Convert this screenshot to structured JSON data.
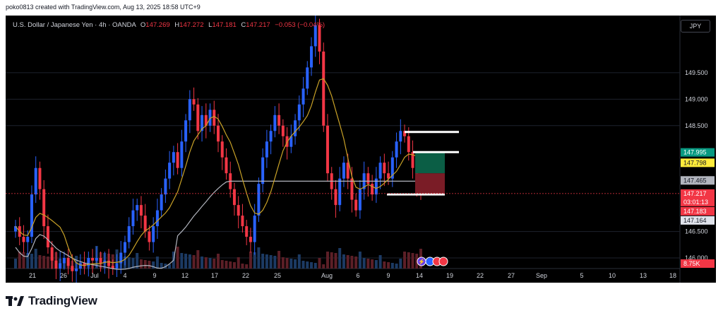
{
  "caption": "poko0813 created with TradingView.com, Aug 13, 2025 18:58 UTC+9",
  "symbol": {
    "title": "U.S. Dollar / Japanese Yen · 4h · OANDA",
    "o_label": "O",
    "o_value": "147.269",
    "h_label": "H",
    "h_value": "147.272",
    "l_label": "L",
    "l_value": "147.181",
    "c_label": "C",
    "c_value": "147.217",
    "change": "−0.053 (−0.04%)"
  },
  "currency_button": "JPY",
  "brand": "TradingView",
  "colors": {
    "up": "#2962ff",
    "down": "#f23645",
    "ma_fast": "#c9a227",
    "ma_slow": "#b2b5be",
    "profit": "#0b5e45",
    "loss": "#7a1c26"
  },
  "chart_data": {
    "type": "candlestick",
    "title": "U.S. Dollar / Japanese Yen · 4h · OANDA",
    "y_axis_ticks": [
      "149.500",
      "149.000",
      "148.500",
      "146.500",
      "146.000"
    ],
    "ylim": [
      145.8,
      150.5
    ],
    "x_axis_ticks": [
      "21",
      "26",
      "Jul",
      "4",
      "9",
      "12",
      "17",
      "22",
      "25",
      "Aug",
      "6",
      "9",
      "14",
      "19",
      "22",
      "27",
      "Sep",
      "5",
      "10",
      "13",
      "18"
    ],
    "price_labels": [
      {
        "text": "147.995",
        "value": 147.995,
        "bg": "#089981",
        "fg": "#ffffff"
      },
      {
        "text": "147.798",
        "value": 147.798,
        "bg": "#ffeb3b",
        "fg": "#131722"
      },
      {
        "text": "147.465",
        "value": 147.465,
        "bg": "#b2b5be",
        "fg": "#131722"
      },
      {
        "text": "147.217",
        "value": 147.217,
        "bg": "#f23645",
        "fg": "#ffffff",
        "sub": "03:01:13"
      },
      {
        "text": "147.183",
        "value": 147.183,
        "bg": "#f23645",
        "fg": "#ffffff"
      },
      {
        "text": "147.164",
        "value": 147.164,
        "bg": "#e0e3eb",
        "fg": "#131722"
      }
    ],
    "volume_label": "8.75K",
    "levels": [
      {
        "y": 148.38,
        "x_from": "Aug 12",
        "x_to": "Aug 16"
      },
      {
        "y": 148.0,
        "x_from": "Aug 13",
        "x_to": "Aug 16"
      },
      {
        "y": 147.2,
        "x_from": "Aug 10",
        "x_to": "Aug 15"
      }
    ],
    "position": {
      "entry": 147.6,
      "target": 147.995,
      "stop": 147.2
    },
    "candles_close": [
      146.6,
      146.4,
      146.3,
      146.4,
      147.2,
      147.7,
      147.3,
      146.6,
      146.2,
      145.95,
      145.8,
      145.9,
      146.0,
      145.85,
      145.75,
      145.8,
      145.9,
      145.85,
      146.0,
      145.95,
      146.0,
      145.9,
      145.95,
      145.85,
      145.8,
      145.9,
      146.1,
      146.3,
      146.6,
      146.9,
      147.0,
      146.8,
      146.5,
      146.3,
      146.6,
      146.9,
      147.2,
      147.5,
      147.8,
      148.0,
      147.7,
      148.2,
      148.6,
      149.0,
      148.9,
      148.4,
      148.7,
      148.5,
      148.8,
      148.5,
      148.2,
      147.9,
      147.6,
      147.3,
      147.0,
      146.8,
      146.6,
      146.4,
      146.3,
      146.8,
      147.4,
      147.9,
      148.2,
      148.4,
      148.7,
      148.5,
      148.3,
      148.1,
      148.3,
      148.6,
      148.9,
      149.2,
      149.6,
      150.0,
      150.4,
      149.9,
      148.5,
      147.6,
      147.3,
      147.0,
      147.5,
      147.8,
      147.5,
      147.1,
      146.9,
      147.3,
      147.6,
      147.4,
      147.2,
      147.5,
      147.8,
      147.6,
      147.5,
      147.9,
      148.2,
      148.4,
      148.3,
      148.0,
      147.7,
      147.4,
      147.217
    ]
  }
}
